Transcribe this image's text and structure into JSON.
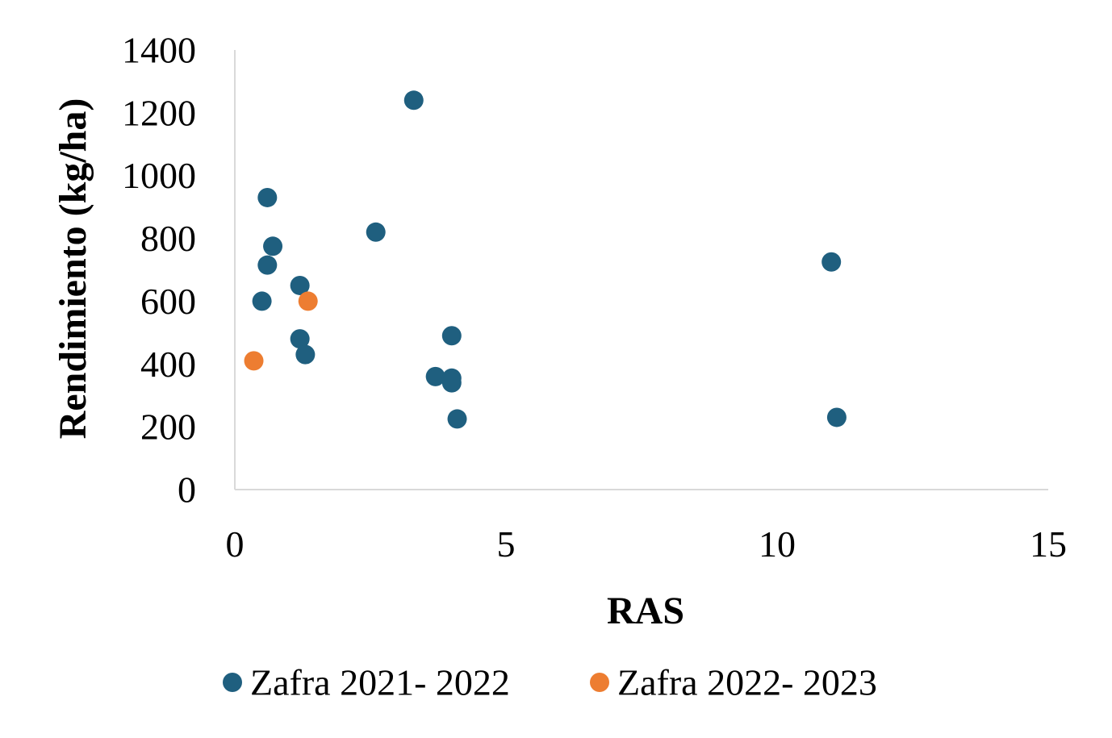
{
  "chart_data": {
    "type": "scatter",
    "title": "",
    "xlabel": "RAS",
    "ylabel": "Rendimiento (kg/ha)",
    "xlim": [
      0,
      15
    ],
    "ylim": [
      0,
      1400
    ],
    "xticks": [
      0,
      5,
      10,
      15
    ],
    "yticks": [
      0,
      200,
      400,
      600,
      800,
      1000,
      1200,
      1400
    ],
    "grid": false,
    "legend": "bottom",
    "series": [
      {
        "name": "Zafra 2021- 2022",
        "color": "#1f5f7f",
        "points": [
          {
            "x": 0.6,
            "y": 930
          },
          {
            "x": 0.7,
            "y": 775
          },
          {
            "x": 0.6,
            "y": 715
          },
          {
            "x": 0.5,
            "y": 600
          },
          {
            "x": 1.2,
            "y": 650
          },
          {
            "x": 1.2,
            "y": 480
          },
          {
            "x": 1.3,
            "y": 430
          },
          {
            "x": 2.6,
            "y": 820
          },
          {
            "x": 3.3,
            "y": 1240
          },
          {
            "x": 4.0,
            "y": 490
          },
          {
            "x": 3.7,
            "y": 360
          },
          {
            "x": 4.0,
            "y": 355
          },
          {
            "x": 4.0,
            "y": 340
          },
          {
            "x": 4.1,
            "y": 225
          },
          {
            "x": 11.0,
            "y": 725
          },
          {
            "x": 11.1,
            "y": 230
          }
        ]
      },
      {
        "name": "Zafra 2022- 2023",
        "color": "#ed7d31",
        "points": [
          {
            "x": 1.35,
            "y": 600
          },
          {
            "x": 0.35,
            "y": 410
          }
        ]
      }
    ]
  }
}
